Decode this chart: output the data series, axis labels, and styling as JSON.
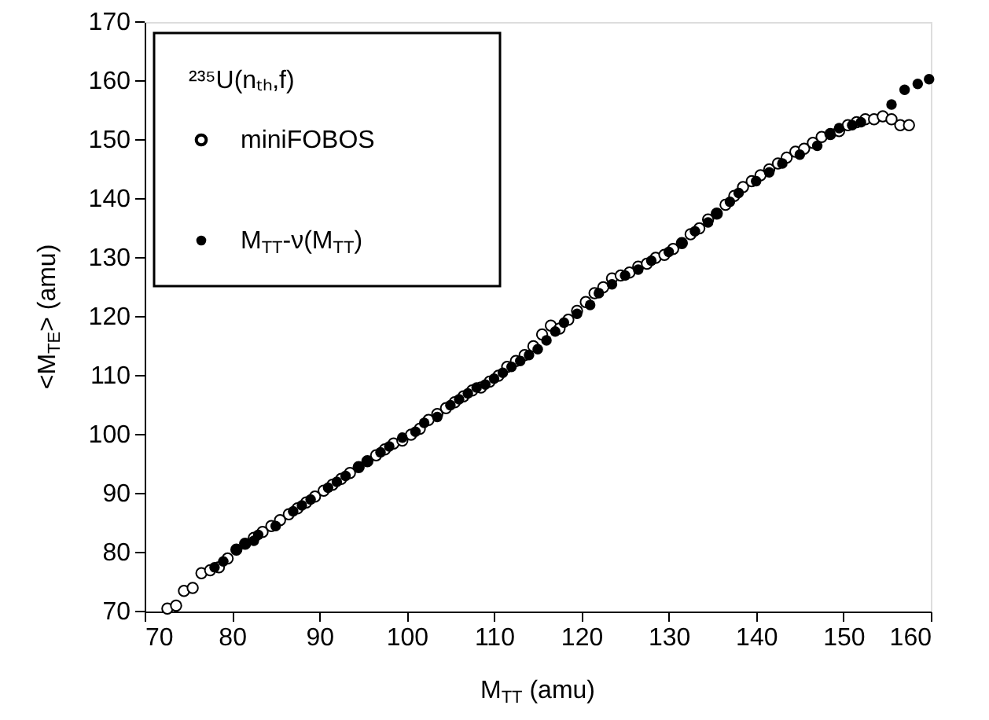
{
  "chart_data": {
    "type": "scatter",
    "xlabel": "M$_{TT}$ (amu)",
    "ylabel": "<M$_{TE}$> (amu)",
    "legend_title": "²³⁵U(nₜₕ,f)",
    "xlim": [
      70,
      160
    ],
    "ylim": [
      70,
      170
    ],
    "xticks": [
      70,
      80,
      90,
      100,
      110,
      120,
      130,
      140,
      150,
      160
    ],
    "yticks": [
      70,
      80,
      90,
      100,
      110,
      120,
      130,
      140,
      150,
      160,
      170
    ],
    "grid": false,
    "legend": "top left",
    "series": [
      {
        "name": "miniFOBOS",
        "color": "#000000",
        "marker": "circle",
        "x": [
          72.6,
          73.6,
          74.5,
          75.5,
          76.5,
          77.5,
          78.5,
          79.5,
          80.5,
          81.5,
          82.5,
          83.5,
          84.5,
          85.5,
          86.5,
          87.5,
          88.5,
          89.5,
          90.5,
          91.5,
          92.5,
          93.5,
          94.5,
          95.5,
          96.5,
          97.5,
          98.5,
          99.5,
          100.5,
          101.5,
          102.5,
          103.5,
          104.5,
          105.5,
          106.5,
          107.5,
          108.5,
          109.5,
          110.5,
          111.5,
          112.5,
          113.5,
          114.5,
          115.5,
          116.5,
          117.5,
          118.5,
          119.5,
          120.5,
          121.5,
          122.5,
          123.5,
          124.5,
          125.5,
          126.5,
          127.5,
          128.5,
          129.5,
          130.5,
          131.5,
          132.5,
          133.5,
          134.5,
          135.5,
          136.5,
          137.5,
          138.5,
          139.5,
          140.5,
          141.5,
          142.5,
          143.5,
          144.5,
          145.5,
          146.5,
          147.5,
          148.5,
          149.5,
          150.5,
          151.5,
          152.5,
          153.5,
          154.5,
          155.5,
          156.5,
          157.5
        ],
        "values": [
          70.5,
          71,
          73.5,
          74,
          76.5,
          77,
          77.5,
          79,
          80.5,
          81.5,
          82.5,
          83.5,
          84.5,
          85.5,
          86.5,
          87.5,
          88.5,
          89.5,
          90.5,
          91.5,
          92.5,
          93.5,
          94.5,
          95.5,
          96.5,
          97.5,
          98.5,
          99,
          100,
          101,
          102.5,
          103.5,
          104.5,
          105.5,
          106.5,
          107.5,
          108,
          109,
          110,
          111.5,
          112.5,
          113.5,
          115,
          117,
          118.5,
          118,
          119.5,
          121,
          122.5,
          124,
          125,
          126.5,
          127,
          127.5,
          128.5,
          129,
          130,
          130.5,
          131.5,
          132.5,
          134,
          135,
          136.5,
          137.5,
          139,
          140.5,
          142,
          143,
          144,
          145,
          146,
          147,
          148,
          148.5,
          149.5,
          150.5,
          151,
          151.5,
          152.5,
          153,
          153.5,
          153.5,
          154,
          153.5,
          152.5,
          152.5
        ]
      },
      {
        "name": "M$_{TT}$-ν(M$_{TT}$)",
        "color": "#000000",
        "marker": "circle",
        "x": [
          78,
          79,
          80.5,
          81.5,
          82.5,
          83,
          85,
          87,
          88,
          89,
          91,
          92,
          93,
          94.5,
          95.5,
          97,
          98,
          99.5,
          101,
          102,
          103.5,
          105,
          106,
          107,
          108,
          109,
          110,
          111,
          112,
          113,
          114,
          115,
          116,
          117,
          118,
          119.5,
          121,
          122,
          123.5,
          125,
          126.5,
          128,
          130,
          131.5,
          133,
          134.5,
          135.5,
          137,
          138,
          140,
          141.5,
          143,
          145,
          147,
          148.5,
          149.5,
          151,
          152,
          155.5,
          157,
          158.5,
          159.8
        ],
        "values": [
          77.5,
          78.5,
          80.5,
          81.5,
          82,
          83,
          84.5,
          87,
          88,
          89,
          91,
          92,
          93,
          94.5,
          95.5,
          97,
          98,
          99.5,
          100.5,
          102,
          103,
          105,
          106,
          107,
          108,
          108.5,
          109.5,
          110.5,
          111.5,
          112.5,
          113.5,
          114.5,
          116,
          117.5,
          119,
          120.5,
          122,
          124,
          125.5,
          127,
          128,
          129.5,
          131,
          132.5,
          134.5,
          136,
          137.5,
          139.5,
          141,
          143,
          144.5,
          146,
          147.5,
          149,
          151,
          152,
          152.5,
          153,
          156,
          158.5,
          159.5,
          160.3
        ]
      }
    ]
  }
}
